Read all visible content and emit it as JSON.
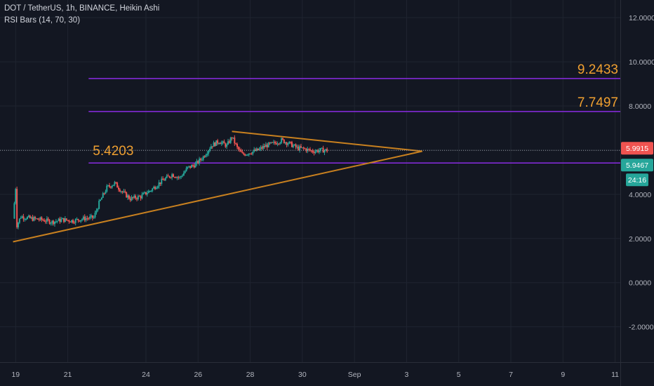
{
  "header": {
    "symbol_line": "DOT / TetherUS, 1h, BINANCE, Heikin Ashi",
    "indicator_line": "RSI Bars (14, 70, 30)"
  },
  "colors": {
    "background": "#131722",
    "grid": "#1f2430",
    "up": "#26a69a",
    "down": "#ef5350",
    "trendline": "#c8801f",
    "level_line": "#8a2be2",
    "level_label": "#f0a030",
    "price_badge": "#ef5350",
    "level_badge": "#26a69a"
  },
  "chart_data": {
    "type": "candlestick",
    "y_axis": {
      "ticks": [
        12,
        10,
        8,
        6,
        4,
        2,
        0,
        -2
      ],
      "tick_labels": [
        "12.0000",
        "10.0000",
        "8.0000",
        "6.0000",
        "4.0000",
        "2.0000",
        "0.0000",
        "-2.0000"
      ],
      "range": [
        -3.6,
        12.8
      ]
    },
    "x_axis": {
      "tick_labels": [
        "19",
        "21",
        "24",
        "26",
        "28",
        "30",
        "Sep",
        "3",
        "5",
        "7",
        "9",
        "11"
      ],
      "tick_days": [
        19,
        21,
        24,
        26,
        28,
        30,
        32,
        34,
        36,
        38,
        40,
        42
      ],
      "range_days": [
        18.4,
        42.2
      ]
    },
    "levels": [
      {
        "value": 9.2433,
        "label": "9.2433",
        "start_day": 21.8
      },
      {
        "value": 7.7497,
        "label": "7.7497",
        "start_day": 21.8
      },
      {
        "value": 5.4203,
        "label": "5.4203",
        "start_day": 21.8
      }
    ],
    "trendlines": [
      {
        "from": [
          18.9,
          1.85
        ],
        "to": [
          34.6,
          5.95
        ]
      },
      {
        "from": [
          27.3,
          6.85
        ],
        "to": [
          34.6,
          5.95
        ]
      }
    ],
    "current_price": {
      "value": 5.9915,
      "label": "5.9915"
    },
    "level_badge": {
      "value": 5.4203,
      "label": "5.9467"
    },
    "countdown": {
      "label": "24:16"
    },
    "price_path": [
      [
        18.9,
        2.9
      ],
      [
        19.0,
        4.3
      ],
      [
        19.05,
        2.6
      ],
      [
        19.2,
        3.0
      ],
      [
        19.6,
        2.9
      ],
      [
        20.0,
        2.85
      ],
      [
        20.4,
        2.75
      ],
      [
        20.8,
        2.85
      ],
      [
        21.2,
        2.8
      ],
      [
        21.6,
        2.9
      ],
      [
        22.0,
        2.95
      ],
      [
        22.2,
        3.6
      ],
      [
        22.5,
        4.3
      ],
      [
        22.8,
        4.5
      ],
      [
        23.1,
        4.1
      ],
      [
        23.4,
        3.8
      ],
      [
        23.8,
        3.9
      ],
      [
        24.2,
        4.2
      ],
      [
        24.6,
        4.6
      ],
      [
        25.0,
        4.9
      ],
      [
        25.3,
        4.75
      ],
      [
        25.6,
        5.2
      ],
      [
        25.9,
        5.35
      ],
      [
        26.2,
        5.7
      ],
      [
        26.5,
        6.2
      ],
      [
        26.8,
        6.4
      ],
      [
        27.1,
        6.2
      ],
      [
        27.3,
        6.6
      ],
      [
        27.5,
        6.1
      ],
      [
        27.7,
        5.8
      ],
      [
        28.0,
        5.9
      ],
      [
        28.3,
        6.0
      ],
      [
        28.6,
        6.2
      ],
      [
        28.9,
        6.3
      ],
      [
        29.2,
        6.45
      ],
      [
        29.5,
        6.3
      ],
      [
        29.8,
        6.1
      ],
      [
        30.1,
        6.05
      ],
      [
        30.4,
        5.95
      ],
      [
        30.7,
        6.0
      ],
      [
        31.0,
        5.99
      ]
    ]
  }
}
